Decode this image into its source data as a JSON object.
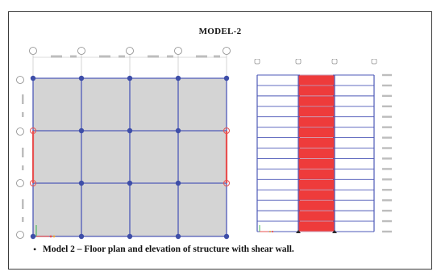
{
  "slide": {
    "title": "MODEL-2",
    "bullet": "•",
    "caption": "Model 2 – Floor  plan and elevation of structure with shear wall."
  },
  "colors": {
    "slab": "#d4d4d4",
    "beam": "#4e59b8",
    "column": "#3e4ea8",
    "shear_wall": "#e85050",
    "grid_marker": "#8a8a8a"
  },
  "icons": {
    "grid_bubble": "grid-bubble-icon",
    "column_node": "column-node-icon",
    "axis_triad": "axis-triad-icon"
  }
}
